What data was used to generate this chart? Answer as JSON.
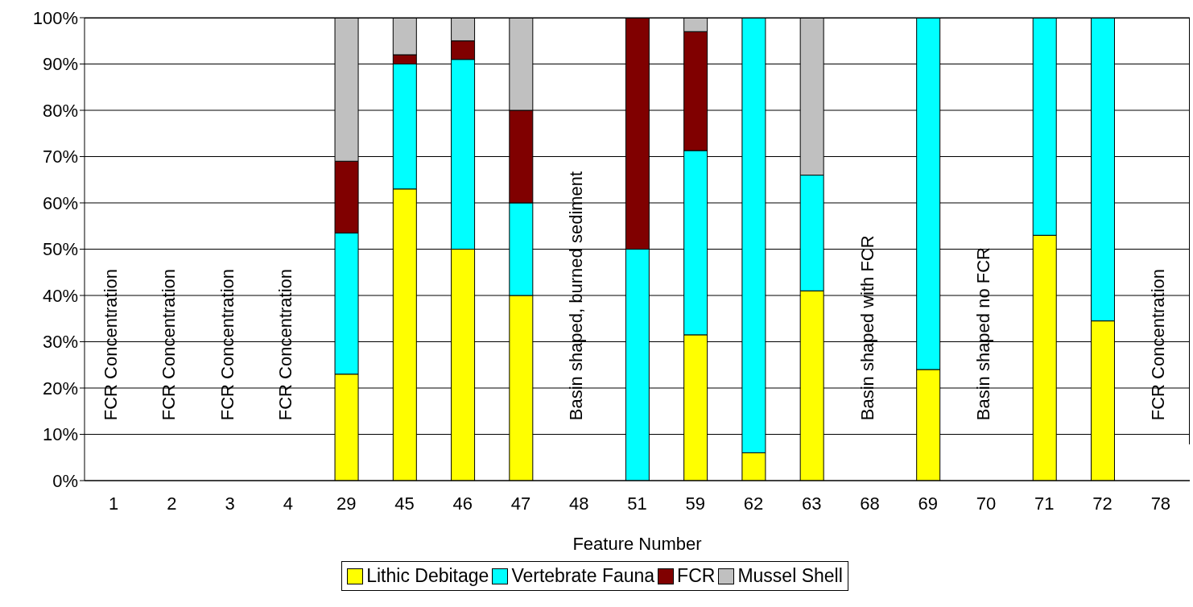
{
  "chart_data": {
    "type": "bar",
    "stacked": true,
    "xlabel": "Feature Number",
    "categories": [
      "1",
      "2",
      "3",
      "4",
      "29",
      "45",
      "46",
      "47",
      "48",
      "51",
      "59",
      "62",
      "63",
      "68",
      "69",
      "70",
      "71",
      "72",
      "78"
    ],
    "series": [
      {
        "name": "Lithic Debitage",
        "color": "#ffff00",
        "values": [
          null,
          null,
          null,
          null,
          23,
          63,
          50,
          40,
          null,
          0,
          31.5,
          6,
          41,
          null,
          24,
          null,
          53,
          34.5,
          null
        ]
      },
      {
        "name": "Vertebrate Fauna",
        "color": "#00ffff",
        "values": [
          null,
          null,
          null,
          null,
          30.5,
          27,
          41,
          20,
          null,
          50,
          39.8,
          94,
          25,
          null,
          76,
          null,
          47,
          65.5,
          null
        ]
      },
      {
        "name": "FCR",
        "color": "#800000",
        "values": [
          null,
          null,
          null,
          null,
          15.5,
          2,
          4,
          20,
          null,
          50,
          25.7,
          0,
          0,
          null,
          0,
          null,
          0,
          0,
          null
        ]
      },
      {
        "name": "Mussel Shell",
        "color": "#c0c0c0",
        "values": [
          null,
          null,
          null,
          null,
          31,
          8,
          5,
          20,
          null,
          0,
          3,
          0,
          34,
          null,
          0,
          null,
          0,
          0,
          null
        ]
      }
    ],
    "ylim": [
      0,
      100
    ],
    "yticks": [
      {
        "value": 0,
        "label": "0%"
      },
      {
        "value": 10,
        "label": "10%"
      },
      {
        "value": 20,
        "label": "20%"
      },
      {
        "value": 30,
        "label": "30%"
      },
      {
        "value": 40,
        "label": "40%"
      },
      {
        "value": 50,
        "label": "50%"
      },
      {
        "value": 60,
        "label": "60%"
      },
      {
        "value": 70,
        "label": "70%"
      },
      {
        "value": 80,
        "label": "80%"
      },
      {
        "value": 90,
        "label": "90%"
      },
      {
        "value": 100,
        "label": "100%"
      }
    ],
    "grid": "y",
    "legend": "bottom",
    "annotations": [
      "FCR Concentration",
      "FCR Concentration",
      "FCR Concentration",
      "FCR Concentration",
      "Basin shaped, burned sediment",
      "Basin shaped with FCR",
      "Basin shaped no FCR",
      "FCR Concentration"
    ]
  }
}
